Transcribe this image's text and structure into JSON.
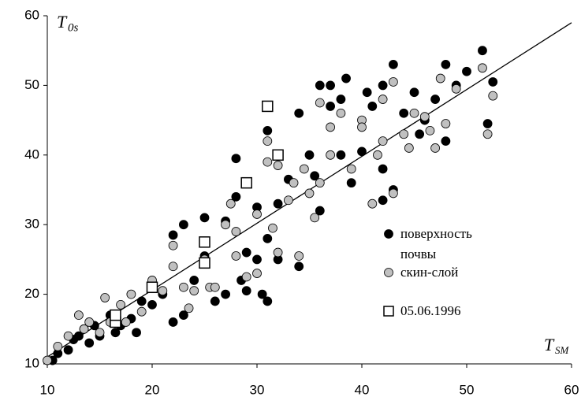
{
  "chart_data": {
    "type": "scatter",
    "ylabel": "T",
    "ylabel_sub": "0s",
    "xlabel": "T",
    "xlabel_sub": "SM",
    "xlim": [
      10,
      60
    ],
    "ylim": [
      10,
      60
    ],
    "xticks": [
      10,
      20,
      30,
      40,
      50,
      60
    ],
    "yticks": [
      10,
      20,
      30,
      40,
      50,
      60
    ],
    "fit_line": {
      "x": [
        10,
        60
      ],
      "y": [
        11,
        59
      ]
    },
    "series": [
      {
        "name": "поверхность почвы",
        "color": "#000000",
        "marker": "circle",
        "x": [
          10.5,
          11,
          12,
          12.5,
          13,
          13.5,
          14,
          14.5,
          15,
          16,
          16.5,
          17,
          18,
          18.5,
          19,
          20,
          21,
          22,
          22,
          23,
          23,
          24,
          25,
          25,
          26,
          27,
          27,
          28,
          28,
          28.5,
          29,
          29,
          30,
          30,
          30.5,
          31,
          31,
          31,
          32,
          32,
          33,
          34,
          34,
          35,
          35.5,
          36,
          36,
          37,
          37,
          38,
          38,
          38.5,
          39,
          40,
          40.5,
          41,
          42,
          42,
          42,
          43,
          43,
          44,
          45,
          45.5,
          46,
          47,
          48,
          48,
          49,
          50,
          51.5,
          52,
          52.5
        ],
        "y": [
          10.5,
          11.5,
          12,
          13.5,
          14,
          15,
          13,
          15.5,
          14,
          17,
          14.5,
          15.5,
          16.5,
          14.5,
          19,
          18.5,
          20,
          28.5,
          16,
          30,
          17,
          22,
          31,
          25.5,
          19,
          30.5,
          20,
          39.5,
          34,
          22,
          26,
          20.5,
          32.5,
          25,
          20,
          43.5,
          28,
          19,
          33,
          25,
          36.5,
          46,
          24,
          40,
          37,
          50,
          32,
          47,
          50,
          48,
          40,
          51,
          36,
          40.5,
          49,
          47,
          50,
          33.5,
          38,
          53,
          35,
          46,
          49,
          43,
          45,
          48,
          53,
          42,
          50,
          52,
          55,
          44.5,
          50.5
        ]
      },
      {
        "name": "скин-слой",
        "color": "#c0c0c0",
        "marker": "circle",
        "x": [
          10,
          11,
          12,
          13,
          13.5,
          14,
          15,
          15.5,
          16,
          17,
          17.5,
          18,
          19,
          20,
          21,
          22,
          22,
          23,
          23.5,
          24,
          25,
          25.5,
          26,
          27,
          27.5,
          28,
          28,
          29,
          30,
          30,
          31,
          31,
          31.5,
          32,
          32,
          33,
          33.5,
          34,
          34.5,
          35,
          35.5,
          36,
          36,
          37,
          37,
          38,
          39,
          40,
          40,
          41,
          41.5,
          42,
          42,
          43,
          43,
          44,
          44.5,
          45,
          46,
          46.5,
          47,
          47.5,
          48,
          49,
          51.5,
          52,
          52.5
        ],
        "y": [
          10.5,
          12.5,
          14,
          17,
          15,
          16,
          14.5,
          19.5,
          16,
          18.5,
          16,
          20,
          17.5,
          22,
          20.5,
          24,
          27,
          21,
          18,
          20.5,
          25,
          21,
          21,
          30,
          33,
          29,
          25.5,
          22.5,
          31.5,
          23,
          42,
          39,
          29.5,
          26,
          38.5,
          33.5,
          36,
          25.5,
          38,
          34.5,
          31,
          47.5,
          36,
          44,
          40,
          46,
          38,
          45,
          44,
          33,
          40,
          48,
          42,
          50.5,
          34.5,
          43,
          41,
          46,
          45.5,
          43.5,
          41,
          51,
          44.5,
          49.5,
          52.5,
          43,
          48.5
        ]
      },
      {
        "name": "05.06.1996",
        "color": "#000000",
        "marker": "square",
        "x": [
          16.5,
          16.5,
          20,
          25,
          25,
          29,
          31,
          32
        ],
        "y": [
          16,
          17,
          21,
          27.5,
          24.5,
          36,
          47,
          40
        ]
      }
    ]
  }
}
